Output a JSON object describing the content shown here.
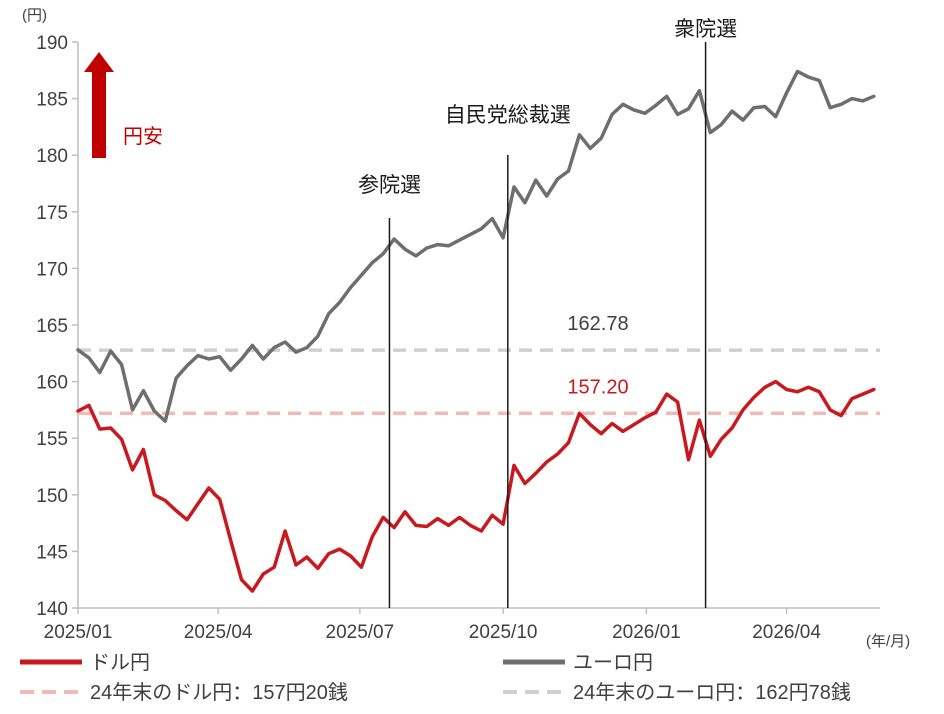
{
  "chart_data": {
    "type": "line",
    "y_unit": "(円)",
    "x_unit": "(年/月)",
    "ylim": [
      140,
      190
    ],
    "y_ticks": [
      140,
      145,
      150,
      155,
      160,
      165,
      170,
      175,
      180,
      185,
      190
    ],
    "x_ticks": [
      "2025/01",
      "2025/04",
      "2025/07",
      "2025/10",
      "2026/01",
      "2026/04"
    ],
    "grid": false,
    "legend_position": "bottom",
    "annotation_yen_weak": "円安",
    "series": [
      {
        "name": "ドル円",
        "color": "#c8191e",
        "points": [
          [
            "2025/01/01",
            157.4
          ],
          [
            "2025/01/08",
            157.9
          ],
          [
            "2025/01/15",
            155.8
          ],
          [
            "2025/01/22",
            155.9
          ],
          [
            "2025/01/29",
            154.9
          ],
          [
            "2025/02/05",
            152.2
          ],
          [
            "2025/02/12",
            154.0
          ],
          [
            "2025/02/19",
            150.0
          ],
          [
            "2025/02/26",
            149.5
          ],
          [
            "2025/03/05",
            148.6
          ],
          [
            "2025/03/12",
            147.8
          ],
          [
            "2025/03/19",
            149.2
          ],
          [
            "2025/03/26",
            150.6
          ],
          [
            "2025/04/02",
            149.6
          ],
          [
            "2025/04/09",
            146.0
          ],
          [
            "2025/04/16",
            142.5
          ],
          [
            "2025/04/23",
            141.5
          ],
          [
            "2025/04/30",
            143.0
          ],
          [
            "2025/05/07",
            143.6
          ],
          [
            "2025/05/14",
            146.8
          ],
          [
            "2025/05/21",
            143.8
          ],
          [
            "2025/05/28",
            144.5
          ],
          [
            "2025/06/04",
            143.5
          ],
          [
            "2025/06/11",
            144.8
          ],
          [
            "2025/06/18",
            145.2
          ],
          [
            "2025/06/25",
            144.6
          ],
          [
            "2025/07/02",
            143.6
          ],
          [
            "2025/07/09",
            146.3
          ],
          [
            "2025/07/16",
            148.0
          ],
          [
            "2025/07/23",
            147.1
          ],
          [
            "2025/07/30",
            148.5
          ],
          [
            "2025/08/06",
            147.3
          ],
          [
            "2025/08/13",
            147.2
          ],
          [
            "2025/08/20",
            147.9
          ],
          [
            "2025/08/27",
            147.3
          ],
          [
            "2025/09/03",
            148.0
          ],
          [
            "2025/09/10",
            147.3
          ],
          [
            "2025/09/17",
            146.8
          ],
          [
            "2025/09/24",
            148.2
          ],
          [
            "2025/10/01",
            147.4
          ],
          [
            "2025/10/08",
            152.6
          ],
          [
            "2025/10/15",
            151.0
          ],
          [
            "2025/10/22",
            151.9
          ],
          [
            "2025/10/29",
            152.9
          ],
          [
            "2025/11/05",
            153.6
          ],
          [
            "2025/11/12",
            154.6
          ],
          [
            "2025/11/19",
            157.2
          ],
          [
            "2025/11/26",
            156.2
          ],
          [
            "2025/12/03",
            155.4
          ],
          [
            "2025/12/10",
            156.3
          ],
          [
            "2025/12/17",
            155.6
          ],
          [
            "2025/12/24",
            156.2
          ],
          [
            "2025/12/31",
            156.8
          ],
          [
            "2026/01/07",
            157.3
          ],
          [
            "2026/01/14",
            158.9
          ],
          [
            "2026/01/21",
            158.2
          ],
          [
            "2026/01/28",
            153.1
          ],
          [
            "2026/02/04",
            156.6
          ],
          [
            "2026/02/11",
            153.4
          ],
          [
            "2026/02/18",
            154.9
          ],
          [
            "2026/02/25",
            155.9
          ],
          [
            "2026/03/04",
            157.5
          ],
          [
            "2026/03/11",
            158.6
          ],
          [
            "2026/03/18",
            159.5
          ],
          [
            "2026/03/25",
            160.0
          ],
          [
            "2026/04/01",
            159.3
          ],
          [
            "2026/04/08",
            159.1
          ],
          [
            "2026/04/15",
            159.5
          ],
          [
            "2026/04/22",
            159.1
          ],
          [
            "2026/04/29",
            157.5
          ],
          [
            "2026/05/06",
            157.0
          ],
          [
            "2026/05/13",
            158.5
          ],
          [
            "2026/05/20",
            158.9
          ],
          [
            "2026/05/27",
            159.3
          ]
        ]
      },
      {
        "name": "ユーロ円",
        "color": "#6e6e6e",
        "points": [
          [
            "2025/01/01",
            162.8
          ],
          [
            "2025/01/08",
            162.1
          ],
          [
            "2025/01/15",
            160.8
          ],
          [
            "2025/01/22",
            162.7
          ],
          [
            "2025/01/29",
            161.5
          ],
          [
            "2025/02/05",
            157.5
          ],
          [
            "2025/02/12",
            159.2
          ],
          [
            "2025/02/19",
            157.4
          ],
          [
            "2025/02/26",
            156.5
          ],
          [
            "2025/03/05",
            160.3
          ],
          [
            "2025/03/12",
            161.4
          ],
          [
            "2025/03/19",
            162.3
          ],
          [
            "2025/03/26",
            162.0
          ],
          [
            "2025/04/02",
            162.2
          ],
          [
            "2025/04/09",
            161.0
          ],
          [
            "2025/04/16",
            162.0
          ],
          [
            "2025/04/23",
            163.2
          ],
          [
            "2025/04/30",
            162.0
          ],
          [
            "2025/05/07",
            163.0
          ],
          [
            "2025/05/14",
            163.5
          ],
          [
            "2025/05/21",
            162.6
          ],
          [
            "2025/05/28",
            163.0
          ],
          [
            "2025/06/04",
            164.0
          ],
          [
            "2025/06/11",
            166.0
          ],
          [
            "2025/06/18",
            167.0
          ],
          [
            "2025/06/25",
            168.3
          ],
          [
            "2025/07/02",
            169.4
          ],
          [
            "2025/07/09",
            170.5
          ],
          [
            "2025/07/16",
            171.3
          ],
          [
            "2025/07/23",
            172.6
          ],
          [
            "2025/07/30",
            171.7
          ],
          [
            "2025/08/06",
            171.1
          ],
          [
            "2025/08/13",
            171.8
          ],
          [
            "2025/08/20",
            172.1
          ],
          [
            "2025/08/27",
            172.0
          ],
          [
            "2025/09/03",
            172.5
          ],
          [
            "2025/09/10",
            173.0
          ],
          [
            "2025/09/17",
            173.5
          ],
          [
            "2025/09/24",
            174.4
          ],
          [
            "2025/10/01",
            172.7
          ],
          [
            "2025/10/08",
            177.2
          ],
          [
            "2025/10/15",
            175.8
          ],
          [
            "2025/10/22",
            177.8
          ],
          [
            "2025/10/29",
            176.4
          ],
          [
            "2025/11/05",
            177.9
          ],
          [
            "2025/11/12",
            178.6
          ],
          [
            "2025/11/19",
            181.8
          ],
          [
            "2025/11/26",
            180.6
          ],
          [
            "2025/12/03",
            181.5
          ],
          [
            "2025/12/10",
            183.6
          ],
          [
            "2025/12/17",
            184.5
          ],
          [
            "2025/12/24",
            184.0
          ],
          [
            "2025/12/31",
            183.7
          ],
          [
            "2026/01/07",
            184.4
          ],
          [
            "2026/01/14",
            185.2
          ],
          [
            "2026/01/21",
            183.6
          ],
          [
            "2026/01/28",
            184.1
          ],
          [
            "2026/02/04",
            185.7
          ],
          [
            "2026/02/11",
            182.0
          ],
          [
            "2026/02/18",
            182.7
          ],
          [
            "2026/02/25",
            183.9
          ],
          [
            "2026/03/04",
            183.1
          ],
          [
            "2026/03/11",
            184.2
          ],
          [
            "2026/03/18",
            184.3
          ],
          [
            "2026/03/25",
            183.4
          ],
          [
            "2026/04/01",
            185.5
          ],
          [
            "2026/04/08",
            187.4
          ],
          [
            "2026/04/15",
            186.9
          ],
          [
            "2026/04/22",
            186.6
          ],
          [
            "2026/04/29",
            184.2
          ],
          [
            "2026/05/06",
            184.5
          ],
          [
            "2026/05/13",
            185.0
          ],
          [
            "2026/05/20",
            184.8
          ],
          [
            "2026/05/27",
            185.2
          ]
        ]
      }
    ],
    "reference_lines": [
      {
        "name": "24年末のドル円：157円20銭",
        "value": 157.2,
        "label": "157.20",
        "color": "#f4b9b6"
      },
      {
        "name": "24年末のユーロ円：162円78銭",
        "value": 162.78,
        "label": "162.78",
        "color": "#cfcfcf"
      }
    ],
    "events": [
      {
        "label": "参院選",
        "date": "2025/07/20"
      },
      {
        "label": "自民党総裁選",
        "date": "2025/10/04"
      },
      {
        "label": "衆院選",
        "date": "2026/02/08"
      }
    ]
  }
}
